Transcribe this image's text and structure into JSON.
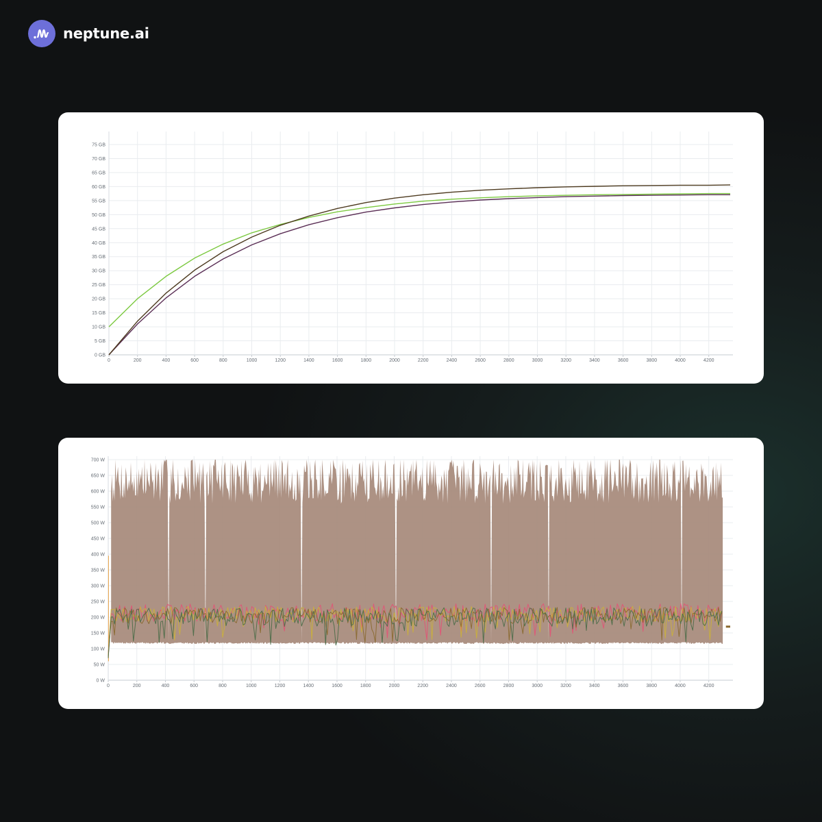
{
  "brand": {
    "name": "neptune.ai",
    "logo_icon": "waveform-icon",
    "logo_color": "#6d6fd9"
  },
  "chart_data": [
    {
      "type": "line",
      "grid": true,
      "legend": "none",
      "ylim": [
        0,
        75
      ],
      "xlim": [
        0,
        4350
      ],
      "y_ticks": [
        0,
        5,
        10,
        15,
        20,
        25,
        30,
        35,
        40,
        45,
        50,
        55,
        60,
        65,
        70,
        75
      ],
      "y_tick_labels": [
        "0 GB",
        "5 GB",
        "10 GB",
        "15 GB",
        "20 GB",
        "25 GB",
        "30 GB",
        "35 GB",
        "40 GB",
        "45 GB",
        "50 GB",
        "55 GB",
        "60 GB",
        "65 GB",
        "70 GB",
        "75 GB"
      ],
      "x_ticks": [
        0,
        200,
        400,
        600,
        800,
        1000,
        1200,
        1400,
        1600,
        1800,
        2000,
        2200,
        2400,
        2600,
        2800,
        3000,
        3200,
        3400,
        3600,
        3800,
        4000,
        4200
      ],
      "x_tick_labels": [
        "0",
        "200",
        "400",
        "600",
        "800",
        "1000",
        "1200",
        "1400",
        "1600",
        "1800",
        "2000",
        "2200",
        "2400",
        "2600",
        "2800",
        "3000",
        "3200",
        "3400",
        "3600",
        "3800",
        "4000",
        "4200"
      ],
      "x": [
        0,
        200,
        400,
        600,
        800,
        1000,
        1200,
        1400,
        1600,
        1800,
        2000,
        2200,
        2400,
        2600,
        2800,
        3000,
        3200,
        3400,
        3600,
        3800,
        4000,
        4200,
        4350
      ],
      "series": [
        {
          "color": "#7cc940",
          "values": [
            10.0,
            20.0,
            28.0,
            34.5,
            39.5,
            43.5,
            46.5,
            49.0,
            51.0,
            52.5,
            53.8,
            54.8,
            55.5,
            56.0,
            56.4,
            56.7,
            56.9,
            57.1,
            57.2,
            57.3,
            57.4,
            57.5,
            57.5
          ]
        },
        {
          "color": "#5a2e55",
          "values": [
            0.0,
            11.0,
            20.3,
            28.0,
            34.2,
            39.2,
            43.2,
            46.4,
            48.9,
            50.9,
            52.4,
            53.6,
            54.5,
            55.2,
            55.7,
            56.1,
            56.4,
            56.6,
            56.8,
            56.9,
            57.0,
            57.1,
            57.1
          ]
        },
        {
          "color": "#4d3a1f",
          "values": [
            0.0,
            12.0,
            22.0,
            30.2,
            36.8,
            42.0,
            46.2,
            49.5,
            52.2,
            54.3,
            55.9,
            57.1,
            58.0,
            58.7,
            59.2,
            59.6,
            59.9,
            60.1,
            60.3,
            60.4,
            60.5,
            60.5,
            60.6
          ]
        }
      ]
    },
    {
      "type": "area",
      "grid": true,
      "legend": "none",
      "ylim": [
        0,
        700
      ],
      "xlim": [
        0,
        4350
      ],
      "y_ticks": [
        0,
        50,
        100,
        150,
        200,
        250,
        300,
        350,
        400,
        450,
        500,
        550,
        600,
        650,
        700
      ],
      "y_tick_labels": [
        "0 W",
        "50 W",
        "100 W",
        "150 W",
        "200 W",
        "250 W",
        "300 W",
        "350 W",
        "400 W",
        "450 W",
        "500 W",
        "550 W",
        "600 W",
        "650 W",
        "700 W"
      ],
      "x_ticks": [
        0,
        200,
        400,
        600,
        800,
        1000,
        1200,
        1400,
        1600,
        1800,
        2000,
        2200,
        2400,
        2600,
        2800,
        3000,
        3200,
        3400,
        3600,
        3800,
        4000,
        4200
      ],
      "x_tick_labels": [
        "0",
        "200",
        "400",
        "600",
        "800",
        "1000",
        "1200",
        "1400",
        "1600",
        "1800",
        "2000",
        "2200",
        "2400",
        "2600",
        "2800",
        "3000",
        "3200",
        "3400",
        "3600",
        "3800",
        "4000",
        "4200"
      ],
      "band": {
        "color": "#a6897a",
        "x_range": [
          20,
          4300
        ],
        "lower": 115,
        "upper_approx": [
          600,
          680
        ],
        "gaps_at_x": [
          420,
          680,
          1350,
          2010,
          2680,
          3080,
          4010
        ]
      },
      "series": [
        {
          "color": "#e05576",
          "mean": 215,
          "spread": 28
        },
        {
          "color": "#c9b03c",
          "mean": 210,
          "spread": 25
        },
        {
          "color": "#8a6a30",
          "mean": 205,
          "spread": 26
        },
        {
          "color": "#4e6e4a",
          "mean": 200,
          "spread": 30
        }
      ],
      "end_segment": {
        "x": [
          4320,
          4350
        ],
        "value": 170
      }
    }
  ]
}
